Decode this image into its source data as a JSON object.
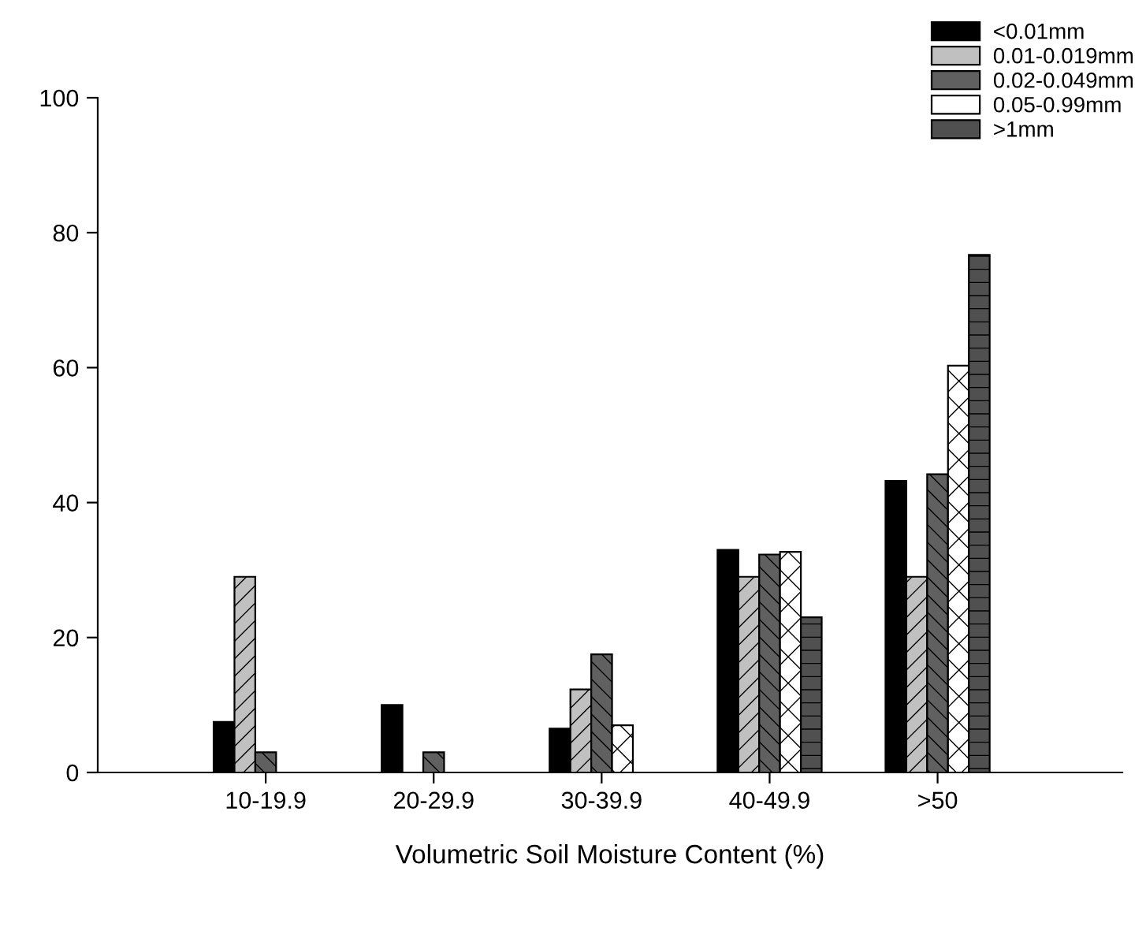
{
  "chart_data": {
    "type": "bar",
    "xlabel": "Volumetric Soil Moisture Content (%)",
    "categories": [
      "10-19.9",
      "20-29.9",
      "30-39.9",
      "40-49.9",
      ">50"
    ],
    "series": [
      {
        "name": "<0.01mm",
        "color": "#000000",
        "values": [
          7.5,
          10,
          6.5,
          33,
          43.2
        ]
      },
      {
        "name": "0.01-0.019mm",
        "color": "#c0c0c0",
        "values": [
          29,
          null,
          12.3,
          29,
          29
        ]
      },
      {
        "name": "0.02-0.049mm",
        "color": "#606060",
        "values": [
          3,
          3,
          17.5,
          32.3,
          44.2
        ]
      },
      {
        "name": "0.05-0.99mm",
        "color": "#ffffff",
        "values": [
          null,
          null,
          7,
          32.7,
          60.3
        ]
      },
      {
        "name": ">1mm",
        "color": "#505050",
        "values": [
          null,
          null,
          null,
          23,
          76.7
        ]
      }
    ],
    "ylim": [
      0,
      100
    ],
    "yticks": [
      0,
      20,
      40,
      60,
      80,
      100
    ],
    "grid": false,
    "legend": "top right"
  }
}
